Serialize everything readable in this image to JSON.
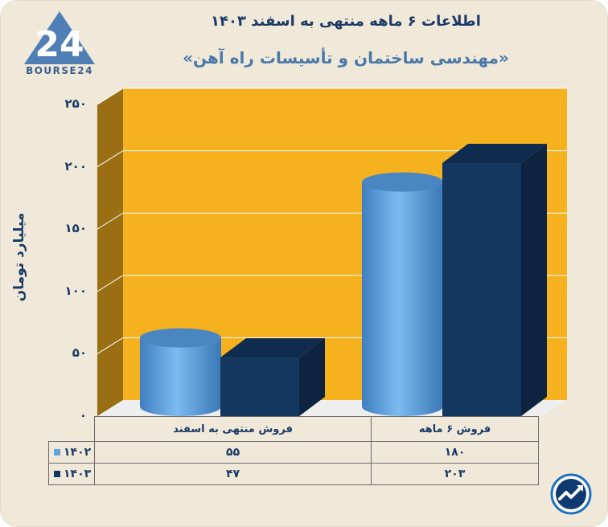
{
  "header": {
    "title": "اطلاعات ۶ ماهه منتهی به اسفند ۱۴۰۳",
    "subtitle": "«مهندسی ساختمان و تأسیسات راه آهن»"
  },
  "logo": {
    "text": "BOURSE24"
  },
  "colors": {
    "series_1402": "#5fa3df",
    "series_1403": "#14375f",
    "plot_bg": "#f6b11e"
  },
  "chart_data": {
    "type": "bar",
    "title": "اطلاعات ۶ ماهه منتهی به اسفند ۱۴۰۳",
    "ylabel": "میلیارد تومان",
    "ylim": [
      0,
      250
    ],
    "yticks": [
      "۰",
      "۵۰",
      "۱۰۰",
      "۱۵۰",
      "۲۰۰",
      "۲۵۰"
    ],
    "categories": [
      "فروش منتهی به اسفند",
      "فروش ۶ ماهه"
    ],
    "series": [
      {
        "name": "۱۴۰۲",
        "values": [
          55,
          180
        ],
        "labels": [
          "۵۵",
          "۱۸۰"
        ]
      },
      {
        "name": "۱۴۰۳",
        "values": [
          47,
          203
        ],
        "labels": [
          "۴۷",
          "۲۰۳"
        ]
      }
    ]
  }
}
